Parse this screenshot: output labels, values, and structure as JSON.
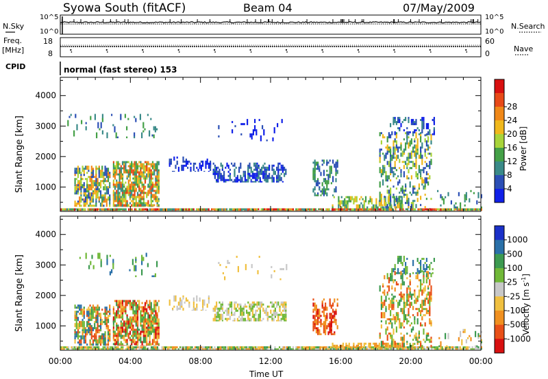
{
  "header": {
    "station": "Syowa South (fitACF)",
    "beam": "Beam 04",
    "date": "07/May/2009"
  },
  "mode": {
    "cpid_label": "CPID",
    "program": "normal (fast stereo) 153"
  },
  "left_labels": {
    "nsky": "N.Sky",
    "freq": "Freq.",
    "mhz": "[MHz]"
  },
  "right_labels": {
    "nsearch": "N.Search",
    "nave": "Nave"
  },
  "noise_ticks": {
    "top": "10^5",
    "bottom": "10^0"
  },
  "freq_ticks": {
    "top": "18",
    "bottom": "8"
  },
  "nave_ticks": {
    "top": "60",
    "bottom": "0"
  },
  "time_axis": {
    "label": "Time UT",
    "ticks": [
      "00:00",
      "04:00",
      "08:00",
      "12:00",
      "16:00",
      "20:00",
      "00:00"
    ]
  },
  "range_axis": {
    "label": "Slant Range [km]",
    "ticks": [
      "1000",
      "2000",
      "3000",
      "4000"
    ],
    "ylim": [
      200,
      4600
    ]
  },
  "power_scale": {
    "label": "Power [dB]",
    "ticks": [
      "4",
      "8",
      "12",
      "16",
      "20",
      "24",
      "28"
    ],
    "colors": [
      "#1020e8",
      "#2b4fb5",
      "#3a8a88",
      "#44a047",
      "#a8d43a",
      "#f0b81c",
      "#f08818",
      "#e84a18",
      "#d81010"
    ]
  },
  "velocity_scale": {
    "label_main": "Velocity [m s",
    "label_sup": "-1",
    "label_end": "]",
    "ticks": [
      "1000",
      "500",
      "100",
      "25",
      "-25",
      "-100",
      "-500",
      "-1000"
    ],
    "colors": [
      "#1a30c8",
      "#2a70a8",
      "#3c9a50",
      "#70b838",
      "#c8c8c8",
      "#f0c040",
      "#f09020",
      "#e85018",
      "#d81010"
    ]
  },
  "chart_data": [
    {
      "type": "heatmap",
      "panel": "power",
      "x_unit": "hours UT",
      "y_unit": "km",
      "xlim": [
        0,
        24
      ],
      "ylim": [
        200,
        4600
      ],
      "blobs": [
        {
          "x": [
            0.0,
            24.0
          ],
          "y": [
            220,
            300
          ],
          "density": 0.9,
          "colors": [
            2,
            3,
            4,
            6,
            7,
            8
          ]
        },
        {
          "x": [
            0.8,
            2.8
          ],
          "y": [
            350,
            1700
          ],
          "density": 0.45,
          "colors": [
            1,
            2,
            3,
            4,
            5,
            6
          ]
        },
        {
          "x": [
            3.0,
            5.6
          ],
          "y": [
            350,
            1850
          ],
          "density": 0.55,
          "colors": [
            2,
            3,
            4,
            5,
            6,
            7
          ]
        },
        {
          "x": [
            0.4,
            5.5
          ],
          "y": [
            2600,
            3400
          ],
          "density": 0.05,
          "colors": [
            1,
            2,
            3
          ]
        },
        {
          "x": [
            6.2,
            8.6
          ],
          "y": [
            1500,
            2000
          ],
          "density": 0.2,
          "colors": [
            0,
            1
          ]
        },
        {
          "x": [
            8.7,
            12.9
          ],
          "y": [
            1150,
            1800
          ],
          "density": 0.35,
          "colors": [
            0,
            1,
            2
          ]
        },
        {
          "x": [
            9.0,
            13.0
          ],
          "y": [
            2500,
            3300
          ],
          "density": 0.04,
          "colors": [
            0,
            1
          ]
        },
        {
          "x": [
            14.4,
            15.8
          ],
          "y": [
            700,
            1900
          ],
          "density": 0.3,
          "colors": [
            1,
            2,
            3
          ]
        },
        {
          "x": [
            15.5,
            19.5
          ],
          "y": [
            300,
            700
          ],
          "density": 0.3,
          "colors": [
            2,
            3,
            4,
            5
          ]
        },
        {
          "x": [
            18.2,
            21.2
          ],
          "y": [
            300,
            2800
          ],
          "density": 0.22,
          "colors": [
            1,
            2,
            3,
            4,
            5
          ]
        },
        {
          "x": [
            18.8,
            21.3
          ],
          "y": [
            2700,
            3300
          ],
          "density": 0.2,
          "colors": [
            0,
            1,
            2
          ]
        },
        {
          "x": [
            21.5,
            24.0
          ],
          "y": [
            300,
            900
          ],
          "density": 0.12,
          "colors": [
            1,
            2,
            3
          ]
        }
      ]
    },
    {
      "type": "heatmap",
      "panel": "velocity",
      "x_unit": "hours UT",
      "y_unit": "km",
      "xlim": [
        0,
        24
      ],
      "ylim": [
        200,
        4600
      ],
      "blobs": [
        {
          "x": [
            0.0,
            24.0
          ],
          "y": [
            220,
            330
          ],
          "density": 0.85,
          "colors": [
            2,
            3,
            4,
            5,
            6
          ]
        },
        {
          "x": [
            0.8,
            2.8
          ],
          "y": [
            350,
            1700
          ],
          "density": 0.45,
          "colors": [
            1,
            2,
            3,
            5,
            6,
            7
          ]
        },
        {
          "x": [
            3.0,
            5.6
          ],
          "y": [
            350,
            1850
          ],
          "density": 0.55,
          "colors": [
            2,
            3,
            5,
            6,
            7,
            8
          ]
        },
        {
          "x": [
            0.4,
            5.5
          ],
          "y": [
            2600,
            3400
          ],
          "density": 0.05,
          "colors": [
            1,
            2,
            3
          ]
        },
        {
          "x": [
            6.2,
            8.6
          ],
          "y": [
            1500,
            2000
          ],
          "density": 0.2,
          "colors": [
            4,
            5
          ]
        },
        {
          "x": [
            8.7,
            12.9
          ],
          "y": [
            1150,
            1800
          ],
          "density": 0.35,
          "colors": [
            3,
            4,
            5
          ]
        },
        {
          "x": [
            9.0,
            13.0
          ],
          "y": [
            2500,
            3300
          ],
          "density": 0.04,
          "colors": [
            4,
            5
          ]
        },
        {
          "x": [
            14.4,
            15.8
          ],
          "y": [
            700,
            1900
          ],
          "density": 0.3,
          "colors": [
            6,
            7,
            8
          ]
        },
        {
          "x": [
            15.5,
            19.5
          ],
          "y": [
            280,
            450
          ],
          "density": 0.5,
          "colors": [
            5,
            6
          ]
        },
        {
          "x": [
            18.2,
            21.2
          ],
          "y": [
            300,
            2800
          ],
          "density": 0.22,
          "colors": [
            2,
            3,
            5,
            6,
            7
          ]
        },
        {
          "x": [
            18.8,
            21.3
          ],
          "y": [
            2700,
            3300
          ],
          "density": 0.2,
          "colors": [
            1,
            2,
            3
          ]
        },
        {
          "x": [
            21.5,
            24.0
          ],
          "y": [
            300,
            900
          ],
          "density": 0.12,
          "colors": [
            2,
            4,
            5,
            6
          ]
        }
      ]
    }
  ]
}
